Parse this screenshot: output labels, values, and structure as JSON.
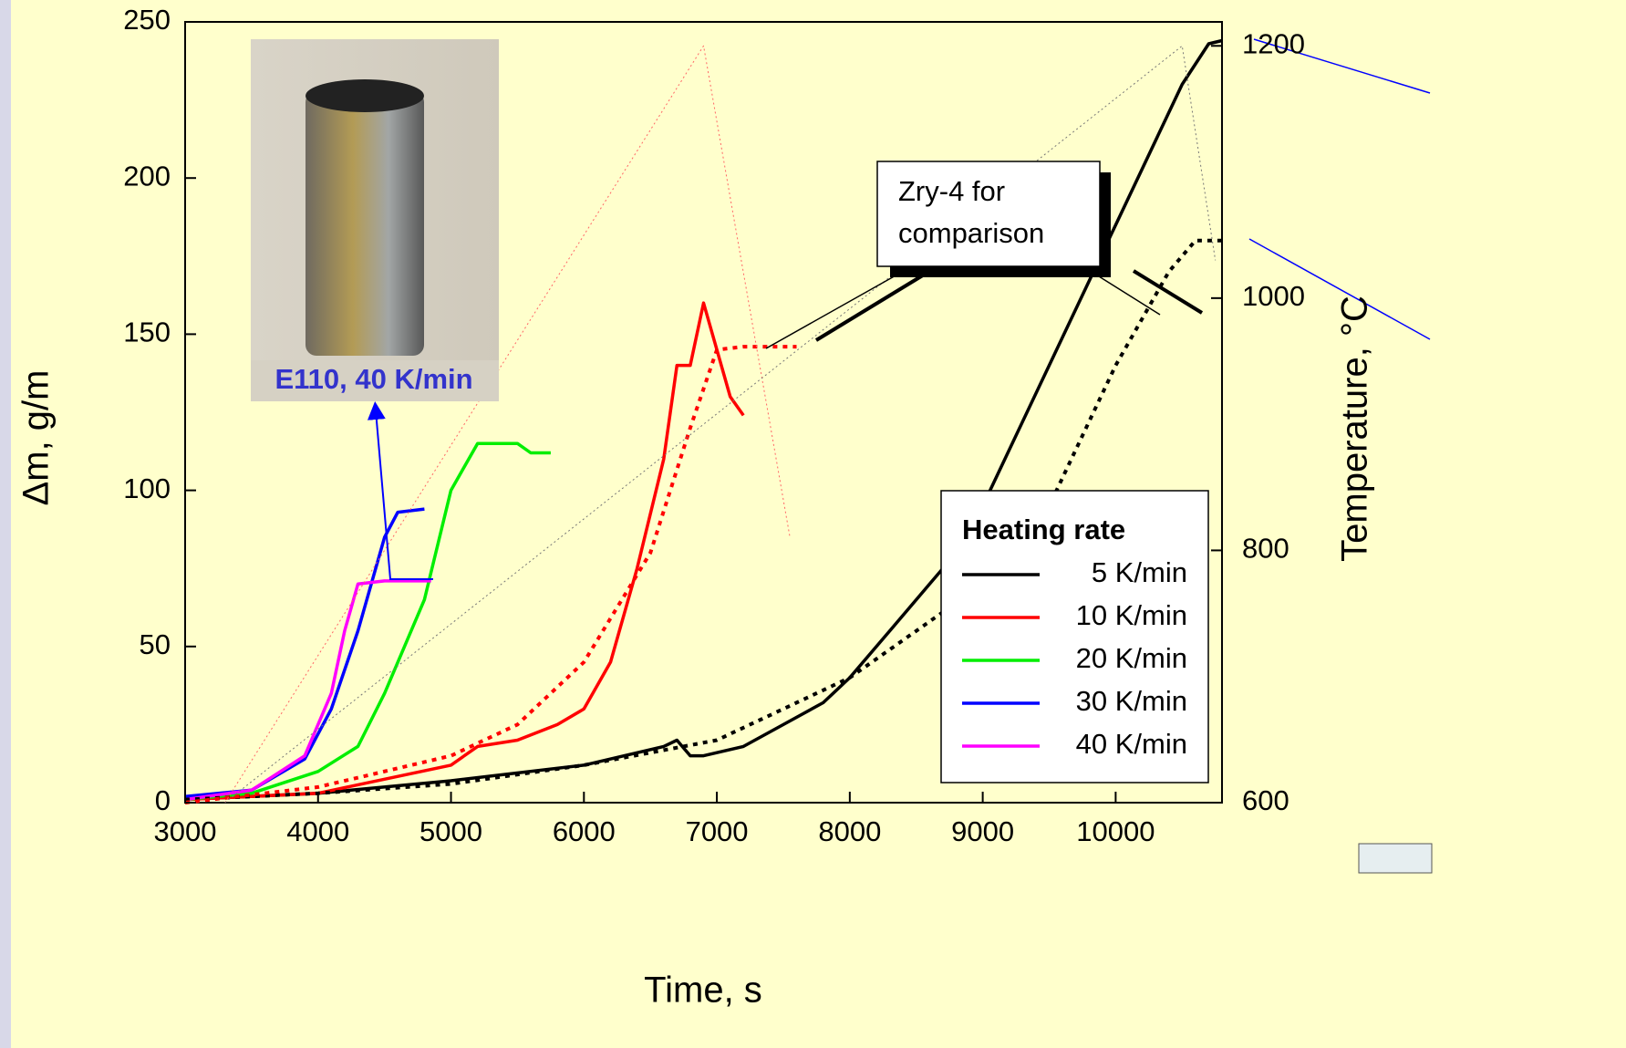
{
  "chart_data": {
    "type": "line",
    "x_label": "Time, s",
    "y_label": "Δm, g/m",
    "y2_label": "Temperature, °C",
    "xlim": [
      3000,
      10800
    ],
    "xticks": [
      3000,
      4000,
      5000,
      6000,
      7000,
      8000,
      9000,
      10000
    ],
    "ylim": [
      0,
      250
    ],
    "yticks": [
      0,
      50,
      100,
      150,
      200,
      250
    ],
    "y2lim": [
      600,
      1219
    ],
    "y2ticks": [
      600,
      800,
      1000,
      1200
    ],
    "legend": "lower right",
    "legend_title": "Heating rate",
    "annotations": [
      {
        "text": [
          "Zry-4 for",
          "comparison"
        ]
      },
      {
        "text": "E110, 40 K/min"
      }
    ],
    "series": [
      {
        "name": "5 K/min",
        "color": "#000000",
        "dash": "solid",
        "x": [
          3000,
          4000,
          5000,
          6000,
          6600,
          6700,
          6800,
          6900,
          7200,
          7500,
          7800,
          8000,
          8300,
          8700,
          9000,
          9500,
          10000,
          10500,
          10700,
          10800
        ],
        "values": [
          1,
          3,
          7,
          12,
          18,
          20,
          15,
          15,
          18,
          25,
          32,
          40,
          55,
          75,
          95,
          140,
          185,
          230,
          243,
          244
        ]
      },
      {
        "name": "10 K/min",
        "color": "#ff0000",
        "dash": "solid",
        "x": [
          3000,
          4000,
          5000,
          5200,
          5500,
          5800,
          6000,
          6200,
          6400,
          6600,
          6700,
          6800,
          6900,
          7000,
          7100,
          7200
        ],
        "values": [
          1,
          3,
          12,
          18,
          20,
          25,
          30,
          45,
          75,
          110,
          140,
          140,
          160,
          145,
          130,
          124
        ]
      },
      {
        "name": "20 K/min",
        "color": "#00ee00",
        "dash": "solid",
        "x": [
          3000,
          3500,
          4000,
          4300,
          4500,
          4800,
          5000,
          5200,
          5500,
          5600,
          5750
        ],
        "values": [
          1,
          3,
          10,
          18,
          35,
          65,
          100,
          115,
          115,
          112,
          112
        ]
      },
      {
        "name": "30 K/min",
        "color": "#0000ff",
        "dash": "solid",
        "x": [
          3000,
          3500,
          3900,
          4100,
          4300,
          4500,
          4600,
          4800
        ],
        "values": [
          2,
          4,
          14,
          30,
          55,
          85,
          93,
          94
        ]
      },
      {
        "name": "40 K/min",
        "color": "#ff00ff",
        "dash": "solid",
        "x": [
          3000,
          3500,
          3900,
          4100,
          4200,
          4300,
          4500,
          4850
        ],
        "values": [
          1,
          4,
          15,
          35,
          55,
          70,
          71,
          71
        ]
      },
      {
        "color": "#000000",
        "dash": "dotted",
        "x": [
          3000,
          4000,
          5000,
          6000,
          7000,
          8000,
          8500,
          9000,
          9500,
          10000,
          10400,
          10600,
          10800
        ],
        "values": [
          1,
          3,
          6,
          12,
          20,
          40,
          55,
          70,
          95,
          140,
          170,
          180,
          180
        ]
      },
      {
        "color": "#ff0000",
        "dash": "dotted",
        "x": [
          3000,
          4000,
          5000,
          5500,
          6000,
          6500,
          6800,
          7000,
          7200,
          7600
        ],
        "values": [
          0,
          5,
          15,
          25,
          45,
          80,
          120,
          145,
          146,
          146
        ]
      },
      {
        "color": "#ff6666",
        "dash": "thin",
        "axis": "y2",
        "x": [
          3300,
          6900,
          7550
        ],
        "values": [
          600,
          1200,
          810
        ]
      },
      {
        "color": "#777777",
        "dash": "thin",
        "axis": "y2",
        "x": [
          3300,
          10500,
          10750
        ],
        "values": [
          600,
          1200,
          1030
        ]
      }
    ]
  }
}
